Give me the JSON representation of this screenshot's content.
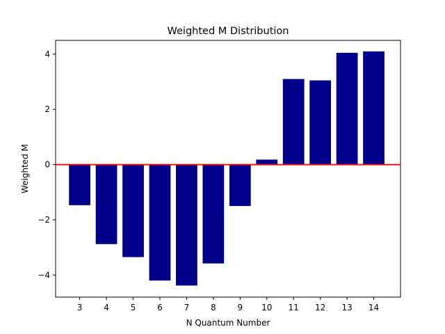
{
  "chart_data": {
    "type": "bar",
    "title": "Weighted M Distribution",
    "xlabel": "N Quantum Number",
    "ylabel": "Weighted M",
    "categories": [
      "3",
      "4",
      "5",
      "6",
      "7",
      "8",
      "9",
      "10",
      "11",
      "12",
      "13",
      "14"
    ],
    "values": [
      -1.47,
      -2.88,
      -3.35,
      -4.2,
      -4.38,
      -3.58,
      -1.5,
      0.18,
      3.1,
      3.05,
      4.05,
      4.1
    ],
    "ylim": [
      -4.8,
      4.5
    ],
    "yticks": [
      "−4",
      "−2",
      "0",
      "2",
      "4"
    ],
    "ytick_values": [
      -4,
      -2,
      0,
      2,
      4
    ],
    "bar_color": "#00008b",
    "reference_line": {
      "y": 0,
      "color": "#ff0000"
    },
    "grid": false,
    "legend": "none"
  }
}
